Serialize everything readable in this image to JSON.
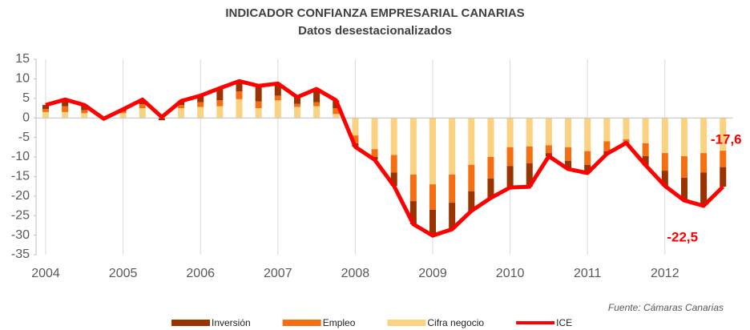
{
  "chart_data": {
    "type": "stacked-bar-line",
    "title": "INDICADOR CONFIANZA EMPRESARIAL CANARIAS",
    "subtitle": "Datos desestacionalizados",
    "source": "Fuente: Cámaras Canarias",
    "categories": [
      "2004",
      null,
      null,
      null,
      "2005",
      null,
      null,
      null,
      "2006",
      null,
      null,
      null,
      "2007",
      null,
      null,
      null,
      "2008",
      null,
      null,
      null,
      "2009",
      null,
      null,
      null,
      "2010",
      null,
      null,
      null,
      "2011",
      null,
      null,
      null,
      "2012",
      null,
      null,
      null
    ],
    "ylim": [
      -35,
      15
    ],
    "yticks": [
      15,
      10,
      5,
      0,
      -5,
      -10,
      -15,
      -20,
      -25,
      -30,
      -35
    ],
    "grid": "x",
    "legend": "bottom",
    "series": [
      {
        "name": "Inversión",
        "kind": "bar",
        "color": "#993300",
        "values": [
          1.0,
          1.7,
          1.3,
          -0.2,
          0.5,
          1.2,
          -0.6,
          1.0,
          1.7,
          3.1,
          2.6,
          4.0,
          3.1,
          1.7,
          3.4,
          2.0,
          -0.9,
          -0.7,
          -3.4,
          -5.9,
          -6.6,
          -6.8,
          -5.0,
          -5.0,
          -5.5,
          -6.0,
          -0.8,
          -2.1,
          -2.1,
          -0.7,
          -0.1,
          -2.3,
          -3.9,
          -5.8,
          -8.5,
          -5.0
        ]
      },
      {
        "name": "Empleo",
        "kind": "bar",
        "color": "#f36f12",
        "values": [
          0.8,
          1.5,
          0.8,
          0,
          0.5,
          1.0,
          0.2,
          0.8,
          1.2,
          1.5,
          2.0,
          1.7,
          1.2,
          0.8,
          1.0,
          1.5,
          -2.0,
          -2.0,
          -4.5,
          -6.8,
          -6.5,
          -7.2,
          -6.8,
          -5.5,
          -4.8,
          -4.3,
          -2.0,
          -3.5,
          -3.5,
          -2.5,
          -0.8,
          -3.3,
          -4.5,
          -5.5,
          -5.0,
          -4.2
        ]
      },
      {
        "name": "Cifra negocio",
        "kind": "bar",
        "color": "#fad282",
        "values": [
          1.5,
          1.5,
          1.2,
          0,
          1.2,
          2.5,
          0.6,
          2.5,
          2.8,
          3.0,
          4.8,
          2.5,
          4.5,
          2.8,
          3.0,
          1.0,
          -4.5,
          -8.0,
          -9.5,
          -14.5,
          -17.0,
          -14.5,
          -12.0,
          -10.0,
          -7.5,
          -7.3,
          -7.0,
          -7.5,
          -8.5,
          -6.0,
          -5.5,
          -6.5,
          -9.0,
          -9.8,
          -9.0,
          -8.4
        ]
      },
      {
        "name": "ICE",
        "kind": "line",
        "color": "#ff0000",
        "values": [
          3.3,
          4.7,
          3.3,
          -0.2,
          2.2,
          4.7,
          0.2,
          4.3,
          5.7,
          7.6,
          9.4,
          8.2,
          8.8,
          5.3,
          7.4,
          4.5,
          -7.4,
          -10.7,
          -17.4,
          -27.2,
          -30.1,
          -28.5,
          -23.8,
          -20.5,
          -17.8,
          -17.6,
          -9.8,
          -13.1,
          -14.1,
          -9.2,
          -6.4,
          -12.1,
          -17.4,
          -21.1,
          -22.5,
          -17.6
        ],
        "value_labels": [
          null,
          null,
          null,
          null,
          null,
          null,
          null,
          null,
          null,
          null,
          null,
          null,
          null,
          null,
          null,
          null,
          null,
          null,
          null,
          null,
          null,
          null,
          null,
          null,
          null,
          null,
          null,
          null,
          null,
          null,
          null,
          null,
          null,
          null,
          "-22,5",
          "-17,6"
        ]
      }
    ]
  }
}
